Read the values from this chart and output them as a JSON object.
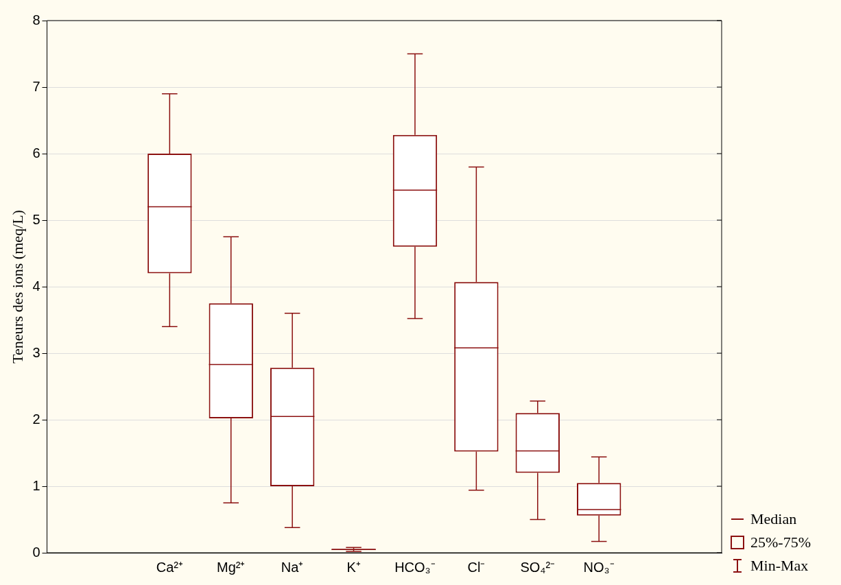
{
  "chart_data": {
    "type": "box",
    "ylabel": "Teneurs des ions (meq/L)",
    "categories": [
      null,
      null,
      "Ca²⁺",
      "Mg²⁺",
      "Na⁺",
      "K⁺",
      "HCO₃⁻",
      "Cl⁻",
      "SO₄²⁻",
      "NO₃⁻",
      null,
      null
    ],
    "boxes": [
      null,
      null,
      {
        "low": 3.4,
        "q1": 4.2,
        "median": 5.2,
        "q3": 6.0,
        "high": 6.9
      },
      {
        "low": 0.75,
        "q1": 2.02,
        "median": 2.83,
        "q3": 3.75,
        "high": 4.75
      },
      {
        "low": 0.38,
        "q1": 1.0,
        "median": 2.05,
        "q3": 2.78,
        "high": 3.6
      },
      {
        "low": 0.02,
        "q1": 0.04,
        "median": 0.05,
        "q3": 0.06,
        "high": 0.08
      },
      {
        "low": 3.52,
        "q1": 4.6,
        "median": 5.45,
        "q3": 6.28,
        "high": 7.5
      },
      {
        "low": 0.94,
        "q1": 1.52,
        "median": 3.08,
        "q3": 4.07,
        "high": 5.8
      },
      {
        "low": 0.5,
        "q1": 1.2,
        "median": 1.53,
        "q3": 2.1,
        "high": 2.28
      },
      {
        "low": 0.17,
        "q1": 0.56,
        "median": 0.65,
        "q3": 1.05,
        "high": 1.44
      },
      null,
      null
    ],
    "color": "#8b1010",
    "ylim": [
      0,
      8
    ],
    "yticks": [
      0,
      1,
      2,
      3,
      4,
      5,
      6,
      7,
      8
    ],
    "grid": "y",
    "annotations": [
      "Median",
      "25%-75%",
      "Min-Max"
    ]
  }
}
